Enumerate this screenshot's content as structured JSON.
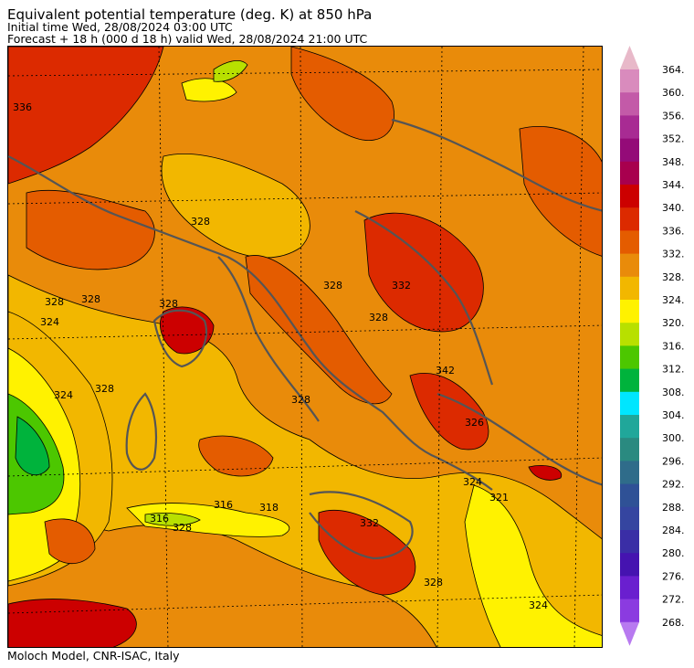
{
  "header": {
    "title": "Equivalent potential temperature (deg. K) at 850 hPa",
    "initial_time": "Initial time  Wed, 28/08/2024  03:00 UTC",
    "forecast": "Forecast  +  18 h  (000 d 18 h)  valid Wed, 28/08/2024 21:00 UTC"
  },
  "footer": {
    "credit": "Moloch Model, CNR-ISAC, Italy"
  },
  "colorbar": {
    "labels": [
      "364.",
      "360.",
      "356.",
      "352.",
      "348.",
      "344.",
      "340.",
      "336.",
      "332.",
      "328.",
      "324.",
      "320.",
      "316.",
      "312.",
      "308.",
      "304.",
      "300.",
      "296.",
      "292.",
      "288.",
      "284.",
      "280.",
      "276.",
      "272.",
      "268."
    ],
    "colors": [
      "#e8b9c9",
      "#d98bbd",
      "#c35aa8",
      "#a82b93",
      "#940b78",
      "#a8004e",
      "#cc0000",
      "#dc2a00",
      "#e45c00",
      "#e98b0a",
      "#f2b700",
      "#fff200",
      "#b8e000",
      "#4cc700",
      "#00b33c",
      "#00e6ff",
      "#20a79a",
      "#2a8a80",
      "#2f6c8a",
      "#2f5196",
      "#3545a0",
      "#3a2ea6",
      "#4513b0",
      "#6a1fcf",
      "#8b3be0",
      "#b87af0"
    ]
  },
  "map": {
    "contour_labels": [
      "336",
      "328",
      "328",
      "324",
      "328",
      "328",
      "324",
      "328",
      "332",
      "328",
      "328",
      "316",
      "316",
      "328",
      "318",
      "332",
      "342",
      "326",
      "324",
      "321",
      "328",
      "324",
      "328"
    ]
  }
}
